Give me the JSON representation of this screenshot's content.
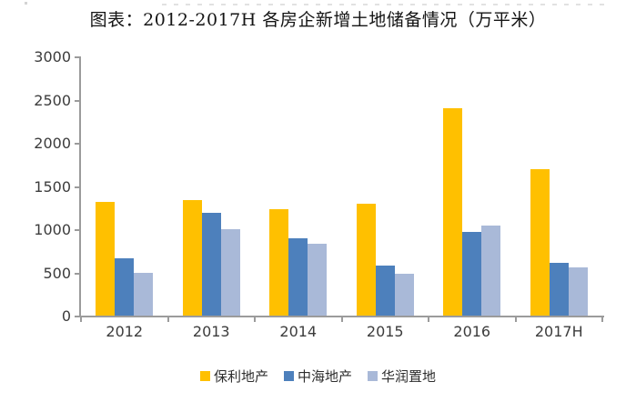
{
  "title": "图表：2012-2017H 各房企新增土地储备情况（万平米）",
  "chart_data": {
    "type": "bar",
    "title": "图表：2012-2017H 各房企新增土地储备情况（万平米）",
    "categories": [
      "2012",
      "2013",
      "2014",
      "2015",
      "2016",
      "2017H"
    ],
    "series": [
      {
        "name": "保利地产",
        "color": "#FFC000",
        "values": [
          1320,
          1340,
          1230,
          1300,
          2400,
          1690
        ]
      },
      {
        "name": "中海地产",
        "color": "#4D80BC",
        "values": [
          660,
          1190,
          895,
          575,
          965,
          610
        ]
      },
      {
        "name": "华润置地",
        "color": "#A9B9D8",
        "values": [
          490,
          1000,
          830,
          485,
          1040,
          560
        ]
      }
    ],
    "ylabel": "",
    "xlabel": "",
    "ylim": [
      0,
      3000
    ],
    "ytick_step": 500,
    "yticks": [
      0,
      500,
      1000,
      1500,
      2000,
      2500,
      3000
    ],
    "legend_position": "bottom",
    "grid": false,
    "colors": {
      "axis": "#9b9b9b",
      "tick_text": "#3c3c3c",
      "title_text": "#141414",
      "background": "#ffffff"
    }
  }
}
